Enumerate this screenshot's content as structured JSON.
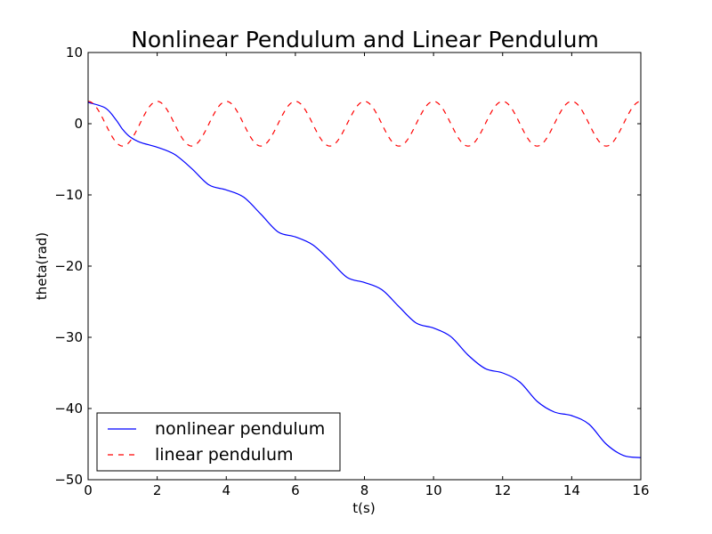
{
  "chart_data": {
    "type": "line",
    "title": "Nonlinear Pendulum and Linear Pendulum",
    "xlabel": "t(s)",
    "ylabel": "theta(rad)",
    "xlim": [
      0,
      16
    ],
    "ylim": [
      -50,
      10
    ],
    "xticks": [
      0,
      2,
      4,
      6,
      8,
      10,
      12,
      14,
      16
    ],
    "yticks": [
      10,
      0,
      -10,
      -20,
      -30,
      -40,
      -50
    ],
    "ytick_labels": [
      "10",
      "0",
      "−10",
      "−20",
      "−30",
      "−40",
      "−50"
    ],
    "grid": false,
    "legend_position": "lower-left",
    "series": [
      {
        "name": "nonlinear pendulum",
        "color": "#0000ff",
        "style": "solid",
        "x": [
          0,
          0.5,
          0.8,
          1.0,
          1.2,
          1.5,
          2.0,
          2.5,
          3.0,
          3.5,
          4.0,
          4.5,
          5.0,
          5.5,
          6.0,
          6.5,
          7.0,
          7.5,
          8.0,
          8.5,
          9.0,
          9.5,
          10.0,
          10.5,
          11.0,
          11.5,
          12.0,
          12.5,
          13.0,
          13.5,
          14.0,
          14.5,
          15.0,
          15.5,
          16.0
        ],
        "y": [
          3.0,
          2.2,
          0.6,
          -0.8,
          -1.8,
          -2.6,
          -3.3,
          -4.3,
          -6.3,
          -8.6,
          -9.3,
          -10.3,
          -12.7,
          -15.2,
          -15.9,
          -17.0,
          -19.2,
          -21.6,
          -22.3,
          -23.3,
          -25.7,
          -28.0,
          -28.7,
          -29.9,
          -32.5,
          -34.4,
          -35.0,
          -36.3,
          -39.0,
          -40.5,
          -41.0,
          -42.2,
          -45.0,
          -46.6,
          -46.9
        ]
      },
      {
        "name": "linear pendulum",
        "color": "#ff0000",
        "style": "dashed",
        "amplitude": 3.14,
        "period": 2.0,
        "t_range": [
          0,
          16
        ]
      }
    ]
  }
}
